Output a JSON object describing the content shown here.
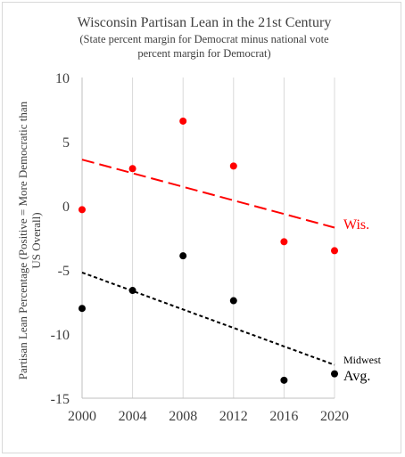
{
  "chart_data": {
    "type": "scatter",
    "title": "Wisconsin Partisan Lean in the 21st Century",
    "subtitle_lines": [
      "(State percent margin for Democrat minus national vote",
      "percent margin for Democrat)"
    ],
    "ylabel_lines": [
      "Partisan Lean Percentage (Positive = More Democratic than",
      "US Overall)"
    ],
    "xlabel": "",
    "xlim": [
      2000,
      2020
    ],
    "ylim": [
      -15,
      10
    ],
    "x_ticks": [
      "2000",
      "2004",
      "2008",
      "2012",
      "2016",
      "2020"
    ],
    "y_ticks": [
      "10",
      "5",
      "0",
      "-5",
      "-10",
      "-15"
    ],
    "grid": "vertical",
    "series": [
      {
        "color": "#ff0000",
        "x": [
          2000,
          2004,
          2008,
          2012,
          2016,
          2020
        ],
        "y": [
          -0.3,
          2.9,
          6.6,
          3.1,
          -2.8,
          -3.5
        ],
        "trendline": {
          "style": "dashed",
          "y_start": 3.6,
          "y_end": -1.7
        }
      },
      {
        "color": "#000000",
        "x": [
          2000,
          2004,
          2008,
          2012,
          2016,
          2020
        ],
        "y": [
          -8.0,
          -6.6,
          -3.9,
          -7.4,
          -13.6,
          -13.1
        ],
        "trendline": {
          "style": "dotted",
          "y_start": -5.2,
          "y_end": -12.4
        }
      }
    ],
    "annotations": {
      "wis": "Wis.",
      "midwest": "Midwest",
      "avg": "Avg."
    }
  }
}
